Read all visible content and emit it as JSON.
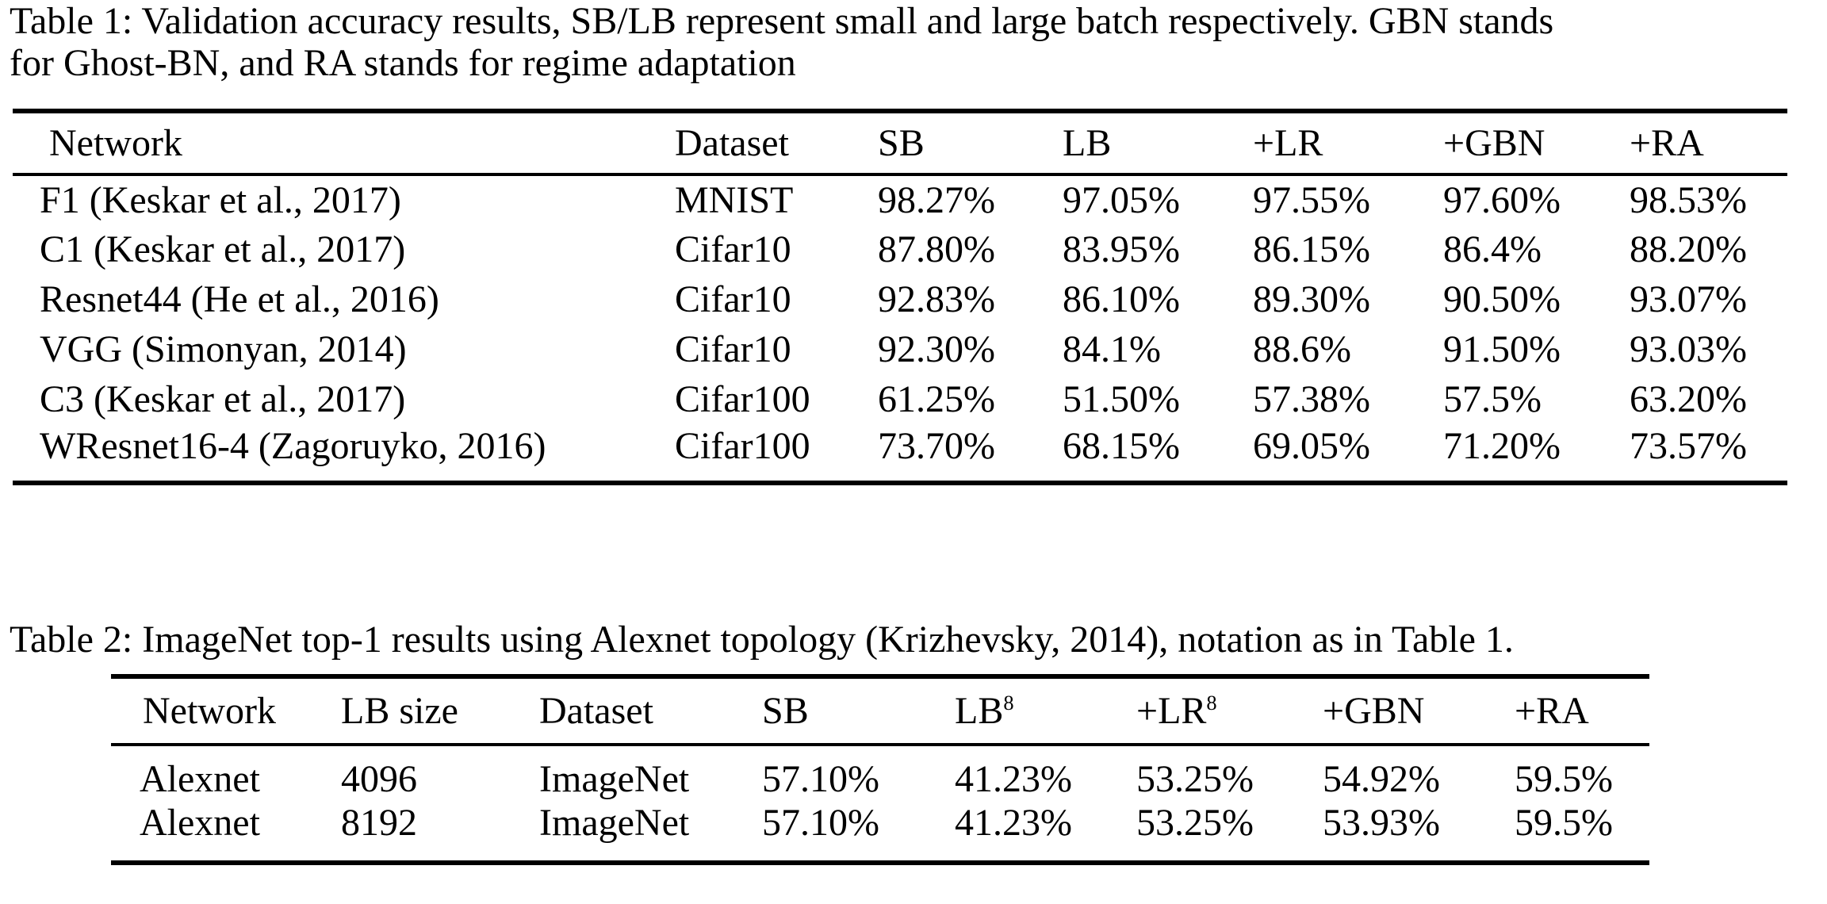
{
  "colors": {
    "background": "#ffffff",
    "text": "#000000",
    "rule": "#000000"
  },
  "table1": {
    "caption": "Table 1: Validation accuracy results, SB/LB represent small and large batch respectively. GBN stands\nfor Ghost-BN, and RA stands for regime adaptation",
    "columns": [
      "Network",
      "Dataset",
      "SB",
      "LB",
      "+LR",
      "+GBN",
      "+RA"
    ],
    "rows": [
      [
        "F1 (Keskar et al., 2017)",
        "MNIST",
        "98.27%",
        "97.05%",
        "97.55%",
        "97.60%",
        "98.53%"
      ],
      [
        "C1 (Keskar et al., 2017)",
        "Cifar10",
        "87.80%",
        "83.95%",
        "86.15%",
        "86.4%",
        "88.20%"
      ],
      [
        "Resnet44 (He et al., 2016)",
        "Cifar10",
        "92.83%",
        "86.10%",
        "89.30%",
        "90.50%",
        "93.07%"
      ],
      [
        "VGG (Simonyan, 2014)",
        "Cifar10",
        "92.30%",
        "84.1%",
        "88.6%",
        "91.50%",
        "93.03%"
      ],
      [
        "C3 (Keskar et al., 2017)",
        "Cifar100",
        "61.25%",
        "51.50%",
        "57.38%",
        "57.5%",
        "63.20%"
      ],
      [
        "WResnet16-4 (Zagoruyko, 2016)",
        "Cifar100",
        "73.70%",
        "68.15%",
        "69.05%",
        "71.20%",
        "73.57%"
      ]
    ]
  },
  "table2": {
    "caption": "Table 2: ImageNet top-1 results using Alexnet topology (Krizhevsky, 2014), notation as in Table 1.",
    "columns": [
      {
        "base": "Network",
        "sup": ""
      },
      {
        "base": "LB size",
        "sup": ""
      },
      {
        "base": "Dataset",
        "sup": ""
      },
      {
        "base": "SB",
        "sup": ""
      },
      {
        "base": "LB",
        "sup": "8"
      },
      {
        "base": "+LR",
        "sup": "8"
      },
      {
        "base": "+GBN",
        "sup": ""
      },
      {
        "base": "+RA",
        "sup": ""
      }
    ],
    "rows": [
      [
        "Alexnet",
        "4096",
        "ImageNet",
        "57.10%",
        "41.23%",
        "53.25%",
        "54.92%",
        "59.5%"
      ],
      [
        "Alexnet",
        "8192",
        "ImageNet",
        "57.10%",
        "41.23%",
        "53.25%",
        "53.93%",
        "59.5%"
      ]
    ]
  }
}
